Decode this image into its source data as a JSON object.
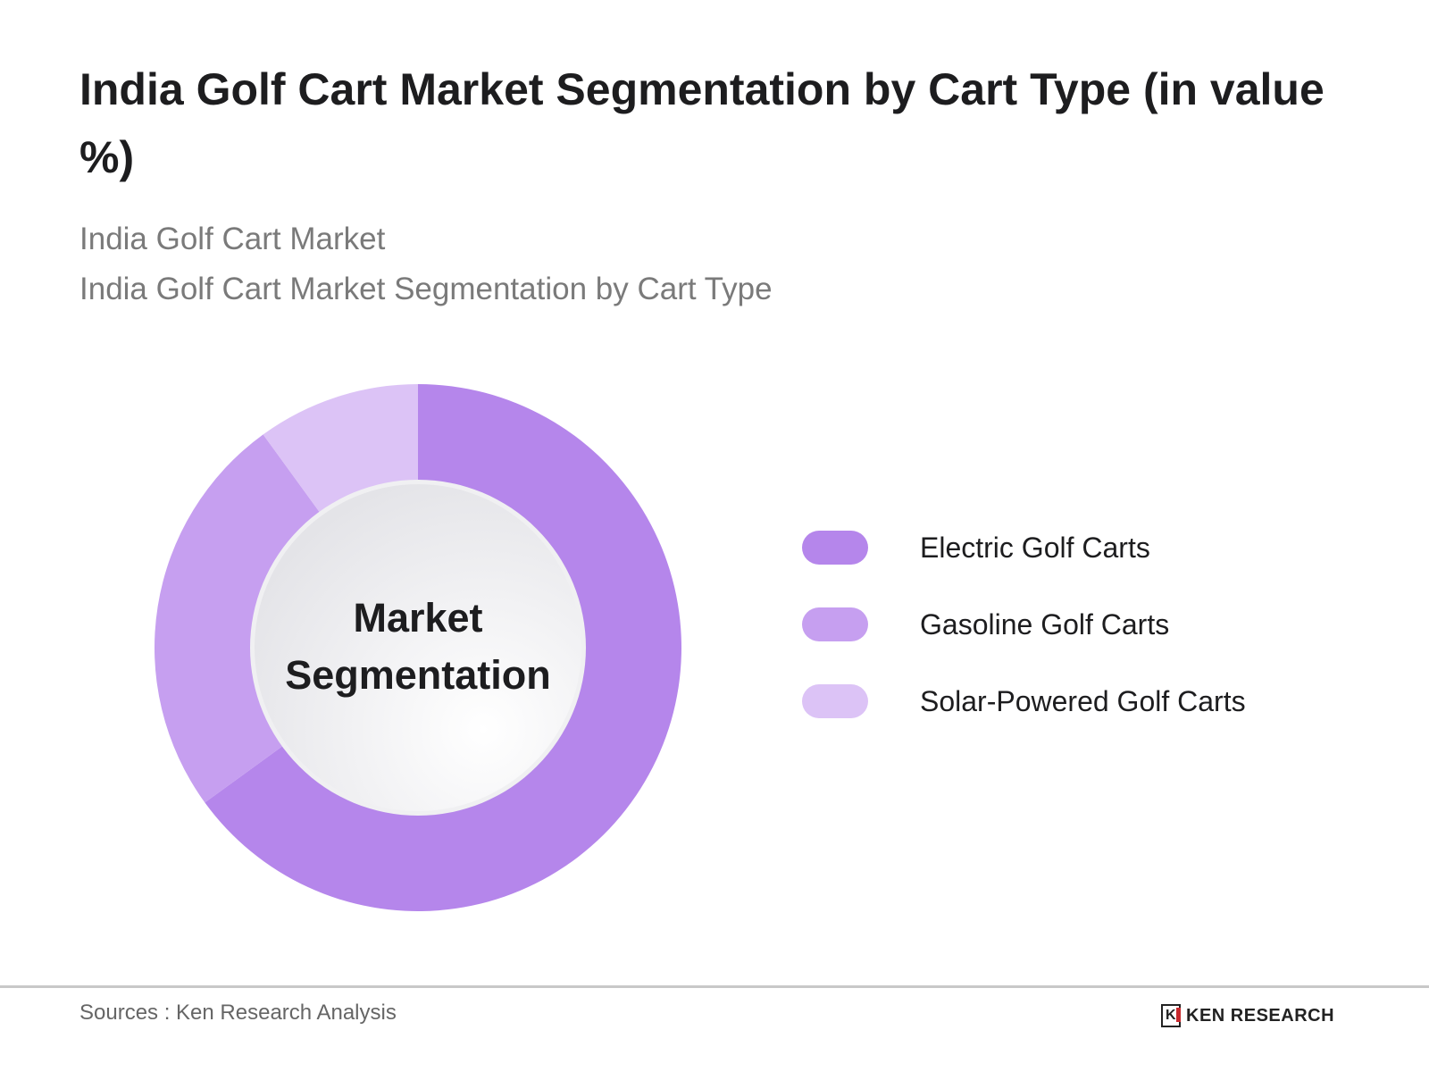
{
  "chart_data": {
    "type": "pie",
    "variant": "donut",
    "title": "India Golf Cart Market Segmentation by Cart Type (in value %)",
    "subtitles": [
      "India Golf Cart Market",
      "India Golf Cart Market Segmentation by Cart Type"
    ],
    "center_label": "Market Segmentation",
    "categories": [
      "Electric Golf Carts",
      "Gasoline Golf Carts",
      "Solar-Powered Golf Carts"
    ],
    "values": [
      65,
      25,
      10
    ],
    "colors": [
      "#b586eb",
      "#c69ff0",
      "#dcc3f6"
    ],
    "legend_position": "right"
  },
  "footer": {
    "source": "Sources : Ken Research Analysis",
    "logo_text": "KEN RESEARCH"
  }
}
